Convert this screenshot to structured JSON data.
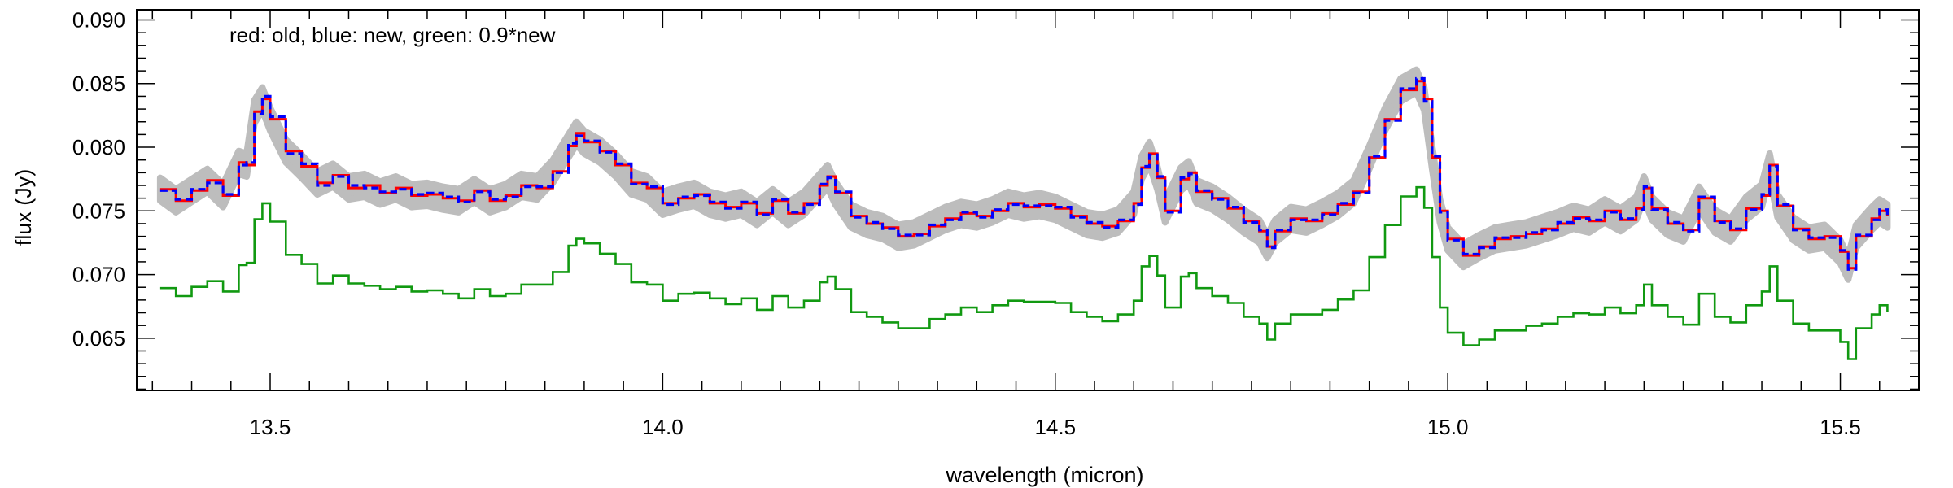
{
  "chart_data": {
    "type": "line",
    "annotation": "red: old, blue: new, green: 0.9*new",
    "xlabel": "wavelength (micron)",
    "ylabel": "flux (Jy)",
    "xlim": [
      13.33,
      15.6
    ],
    "ylim": [
      0.0609,
      0.0908
    ],
    "xticks": [
      13.5,
      14.0,
      14.5,
      15.0,
      15.5
    ],
    "xtick_labels": [
      "13.5",
      "14.0",
      "14.5",
      "15.0",
      "15.5"
    ],
    "yticks": [
      0.065,
      0.07,
      0.075,
      0.08,
      0.085,
      0.09
    ],
    "ytick_labels": [
      "0.065",
      "0.070",
      "0.075",
      "0.080",
      "0.085",
      "0.090"
    ],
    "grid": false,
    "series": [
      {
        "key": "old",
        "color": "#ff0000",
        "style": "solid, with grey uncertainty band",
        "band_color": "#bdbdbd",
        "band_halfwidth": 0.0009,
        "points": [
          [
            13.36,
            0.0767
          ],
          [
            13.38,
            0.0758
          ],
          [
            13.4,
            0.0766
          ],
          [
            13.42,
            0.0774
          ],
          [
            13.44,
            0.0762
          ],
          [
            13.46,
            0.0788
          ],
          [
            13.47,
            0.0786
          ],
          [
            13.48,
            0.0828
          ],
          [
            13.49,
            0.0838
          ],
          [
            13.5,
            0.0822
          ],
          [
            13.52,
            0.0797
          ],
          [
            13.54,
            0.0785
          ],
          [
            13.56,
            0.0772
          ],
          [
            13.58,
            0.0778
          ],
          [
            13.6,
            0.0768
          ],
          [
            13.62,
            0.077
          ],
          [
            13.64,
            0.0764
          ],
          [
            13.66,
            0.0768
          ],
          [
            13.68,
            0.0762
          ],
          [
            13.7,
            0.0763
          ],
          [
            13.72,
            0.076
          ],
          [
            13.74,
            0.0758
          ],
          [
            13.76,
            0.0766
          ],
          [
            13.78,
            0.0758
          ],
          [
            13.8,
            0.0762
          ],
          [
            13.82,
            0.077
          ],
          [
            13.84,
            0.0768
          ],
          [
            13.86,
            0.0781
          ],
          [
            13.88,
            0.0801
          ],
          [
            13.89,
            0.0811
          ],
          [
            13.9,
            0.0804
          ],
          [
            13.92,
            0.0797
          ],
          [
            13.94,
            0.0786
          ],
          [
            13.96,
            0.0772
          ],
          [
            13.98,
            0.0768
          ],
          [
            14.0,
            0.0756
          ],
          [
            14.02,
            0.076
          ],
          [
            14.04,
            0.0763
          ],
          [
            14.06,
            0.0756
          ],
          [
            14.08,
            0.0753
          ],
          [
            14.1,
            0.0756
          ],
          [
            14.12,
            0.0748
          ],
          [
            14.14,
            0.0758
          ],
          [
            14.16,
            0.0748
          ],
          [
            14.18,
            0.0756
          ],
          [
            14.2,
            0.077
          ],
          [
            14.21,
            0.0777
          ],
          [
            14.22,
            0.0764
          ],
          [
            14.24,
            0.0746
          ],
          [
            14.26,
            0.074
          ],
          [
            14.28,
            0.0737
          ],
          [
            14.3,
            0.073
          ],
          [
            14.32,
            0.0732
          ],
          [
            14.34,
            0.0738
          ],
          [
            14.36,
            0.0744
          ],
          [
            14.38,
            0.0748
          ],
          [
            14.4,
            0.0746
          ],
          [
            14.42,
            0.075
          ],
          [
            14.44,
            0.0756
          ],
          [
            14.46,
            0.0753
          ],
          [
            14.48,
            0.0755
          ],
          [
            14.5,
            0.0752
          ],
          [
            14.52,
            0.0746
          ],
          [
            14.54,
            0.074
          ],
          [
            14.56,
            0.0738
          ],
          [
            14.58,
            0.0742
          ],
          [
            14.6,
            0.0756
          ],
          [
            14.61,
            0.0784
          ],
          [
            14.62,
            0.0795
          ],
          [
            14.63,
            0.0776
          ],
          [
            14.64,
            0.075
          ],
          [
            14.66,
            0.0775
          ],
          [
            14.67,
            0.078
          ],
          [
            14.68,
            0.0765
          ],
          [
            14.7,
            0.076
          ],
          [
            14.72,
            0.0752
          ],
          [
            14.74,
            0.0742
          ],
          [
            14.76,
            0.0734
          ],
          [
            14.77,
            0.0722
          ],
          [
            14.78,
            0.0734
          ],
          [
            14.8,
            0.0744
          ],
          [
            14.82,
            0.0742
          ],
          [
            14.84,
            0.0748
          ],
          [
            14.86,
            0.0755
          ],
          [
            14.88,
            0.0765
          ],
          [
            14.9,
            0.0792
          ],
          [
            14.92,
            0.0822
          ],
          [
            14.94,
            0.0845
          ],
          [
            14.96,
            0.0852
          ],
          [
            14.97,
            0.0838
          ],
          [
            14.98,
            0.0792
          ],
          [
            14.99,
            0.075
          ],
          [
            15.0,
            0.0728
          ],
          [
            15.02,
            0.0715
          ],
          [
            15.04,
            0.0722
          ],
          [
            15.06,
            0.0728
          ],
          [
            15.08,
            0.073
          ],
          [
            15.1,
            0.0732
          ],
          [
            15.12,
            0.0736
          ],
          [
            15.14,
            0.074
          ],
          [
            15.16,
            0.0745
          ],
          [
            15.18,
            0.0742
          ],
          [
            15.2,
            0.075
          ],
          [
            15.22,
            0.0743
          ],
          [
            15.24,
            0.0752
          ],
          [
            15.25,
            0.0768
          ],
          [
            15.26,
            0.0752
          ],
          [
            15.28,
            0.074
          ],
          [
            15.3,
            0.0735
          ],
          [
            15.32,
            0.076
          ],
          [
            15.34,
            0.0742
          ],
          [
            15.36,
            0.0735
          ],
          [
            15.38,
            0.0752
          ],
          [
            15.4,
            0.0762
          ],
          [
            15.41,
            0.0786
          ],
          [
            15.42,
            0.0754
          ],
          [
            15.44,
            0.0736
          ],
          [
            15.46,
            0.0728
          ],
          [
            15.48,
            0.073
          ],
          [
            15.5,
            0.0718
          ],
          [
            15.51,
            0.0705
          ],
          [
            15.52,
            0.073
          ],
          [
            15.54,
            0.0744
          ],
          [
            15.55,
            0.075
          ],
          [
            15.56,
            0.0746
          ]
        ]
      },
      {
        "key": "new",
        "color": "#0000ff",
        "style": "dashed",
        "points": [
          [
            13.36,
            0.0766
          ],
          [
            13.38,
            0.0759
          ],
          [
            13.4,
            0.0767
          ],
          [
            13.42,
            0.0772
          ],
          [
            13.44,
            0.0763
          ],
          [
            13.46,
            0.0786
          ],
          [
            13.47,
            0.0788
          ],
          [
            13.48,
            0.0826
          ],
          [
            13.49,
            0.084
          ],
          [
            13.5,
            0.0824
          ],
          [
            13.52,
            0.0795
          ],
          [
            13.54,
            0.0787
          ],
          [
            13.56,
            0.077
          ],
          [
            13.58,
            0.0777
          ],
          [
            13.6,
            0.077
          ],
          [
            13.62,
            0.0768
          ],
          [
            13.64,
            0.0765
          ],
          [
            13.66,
            0.0767
          ],
          [
            13.68,
            0.0763
          ],
          [
            13.7,
            0.0764
          ],
          [
            13.72,
            0.0761
          ],
          [
            13.74,
            0.0757
          ],
          [
            13.76,
            0.0765
          ],
          [
            13.78,
            0.0759
          ],
          [
            13.8,
            0.0761
          ],
          [
            13.82,
            0.0769
          ],
          [
            13.84,
            0.0769
          ],
          [
            13.86,
            0.078
          ],
          [
            13.88,
            0.0803
          ],
          [
            13.89,
            0.0809
          ],
          [
            13.9,
            0.0805
          ],
          [
            13.92,
            0.0796
          ],
          [
            13.94,
            0.0787
          ],
          [
            13.96,
            0.0771
          ],
          [
            13.98,
            0.0769
          ],
          [
            14.0,
            0.0755
          ],
          [
            14.02,
            0.0761
          ],
          [
            14.04,
            0.0762
          ],
          [
            14.06,
            0.0757
          ],
          [
            14.08,
            0.0752
          ],
          [
            14.1,
            0.0757
          ],
          [
            14.12,
            0.0747
          ],
          [
            14.14,
            0.0759
          ],
          [
            14.16,
            0.0749
          ],
          [
            14.18,
            0.0755
          ],
          [
            14.2,
            0.0771
          ],
          [
            14.21,
            0.0776
          ],
          [
            14.22,
            0.0765
          ],
          [
            14.24,
            0.0745
          ],
          [
            14.26,
            0.0741
          ],
          [
            14.28,
            0.0736
          ],
          [
            14.3,
            0.0731
          ],
          [
            14.32,
            0.0731
          ],
          [
            14.34,
            0.0739
          ],
          [
            14.36,
            0.0743
          ],
          [
            14.38,
            0.0749
          ],
          [
            14.4,
            0.0745
          ],
          [
            14.42,
            0.0751
          ],
          [
            14.44,
            0.0755
          ],
          [
            14.46,
            0.0754
          ],
          [
            14.48,
            0.0754
          ],
          [
            14.5,
            0.0753
          ],
          [
            14.52,
            0.0745
          ],
          [
            14.54,
            0.0741
          ],
          [
            14.56,
            0.0737
          ],
          [
            14.58,
            0.0743
          ],
          [
            14.6,
            0.0755
          ],
          [
            14.61,
            0.0785
          ],
          [
            14.62,
            0.0794
          ],
          [
            14.63,
            0.0777
          ],
          [
            14.64,
            0.0749
          ],
          [
            14.66,
            0.0776
          ],
          [
            14.67,
            0.0779
          ],
          [
            14.68,
            0.0766
          ],
          [
            14.7,
            0.0759
          ],
          [
            14.72,
            0.0753
          ],
          [
            14.74,
            0.0741
          ],
          [
            14.76,
            0.0735
          ],
          [
            14.77,
            0.0721
          ],
          [
            14.78,
            0.0735
          ],
          [
            14.8,
            0.0743
          ],
          [
            14.82,
            0.0743
          ],
          [
            14.84,
            0.0747
          ],
          [
            14.86,
            0.0756
          ],
          [
            14.88,
            0.0764
          ],
          [
            14.9,
            0.0793
          ],
          [
            14.92,
            0.0821
          ],
          [
            14.94,
            0.0846
          ],
          [
            14.96,
            0.0854
          ],
          [
            14.97,
            0.0836
          ],
          [
            14.98,
            0.0793
          ],
          [
            14.99,
            0.0749
          ],
          [
            15.0,
            0.0727
          ],
          [
            15.02,
            0.0716
          ],
          [
            15.04,
            0.0721
          ],
          [
            15.06,
            0.0729
          ],
          [
            15.08,
            0.0729
          ],
          [
            15.1,
            0.0733
          ],
          [
            15.12,
            0.0735
          ],
          [
            15.14,
            0.0741
          ],
          [
            15.16,
            0.0744
          ],
          [
            15.18,
            0.0743
          ],
          [
            15.2,
            0.0749
          ],
          [
            15.22,
            0.0744
          ],
          [
            15.24,
            0.0751
          ],
          [
            15.25,
            0.0769
          ],
          [
            15.26,
            0.0751
          ],
          [
            15.28,
            0.0741
          ],
          [
            15.3,
            0.0734
          ],
          [
            15.32,
            0.0761
          ],
          [
            15.34,
            0.0741
          ],
          [
            15.36,
            0.0736
          ],
          [
            15.38,
            0.0751
          ],
          [
            15.4,
            0.0763
          ],
          [
            15.41,
            0.0785
          ],
          [
            15.42,
            0.0755
          ],
          [
            15.44,
            0.0735
          ],
          [
            15.46,
            0.0729
          ],
          [
            15.48,
            0.0729
          ],
          [
            15.5,
            0.0719
          ],
          [
            15.51,
            0.0704
          ],
          [
            15.52,
            0.0731
          ],
          [
            15.54,
            0.0743
          ],
          [
            15.55,
            0.0751
          ],
          [
            15.56,
            0.0745
          ]
        ]
      },
      {
        "key": "0.9*new",
        "color": "#119911",
        "style": "solid",
        "scale_of": "new",
        "scale": 0.9
      }
    ]
  }
}
